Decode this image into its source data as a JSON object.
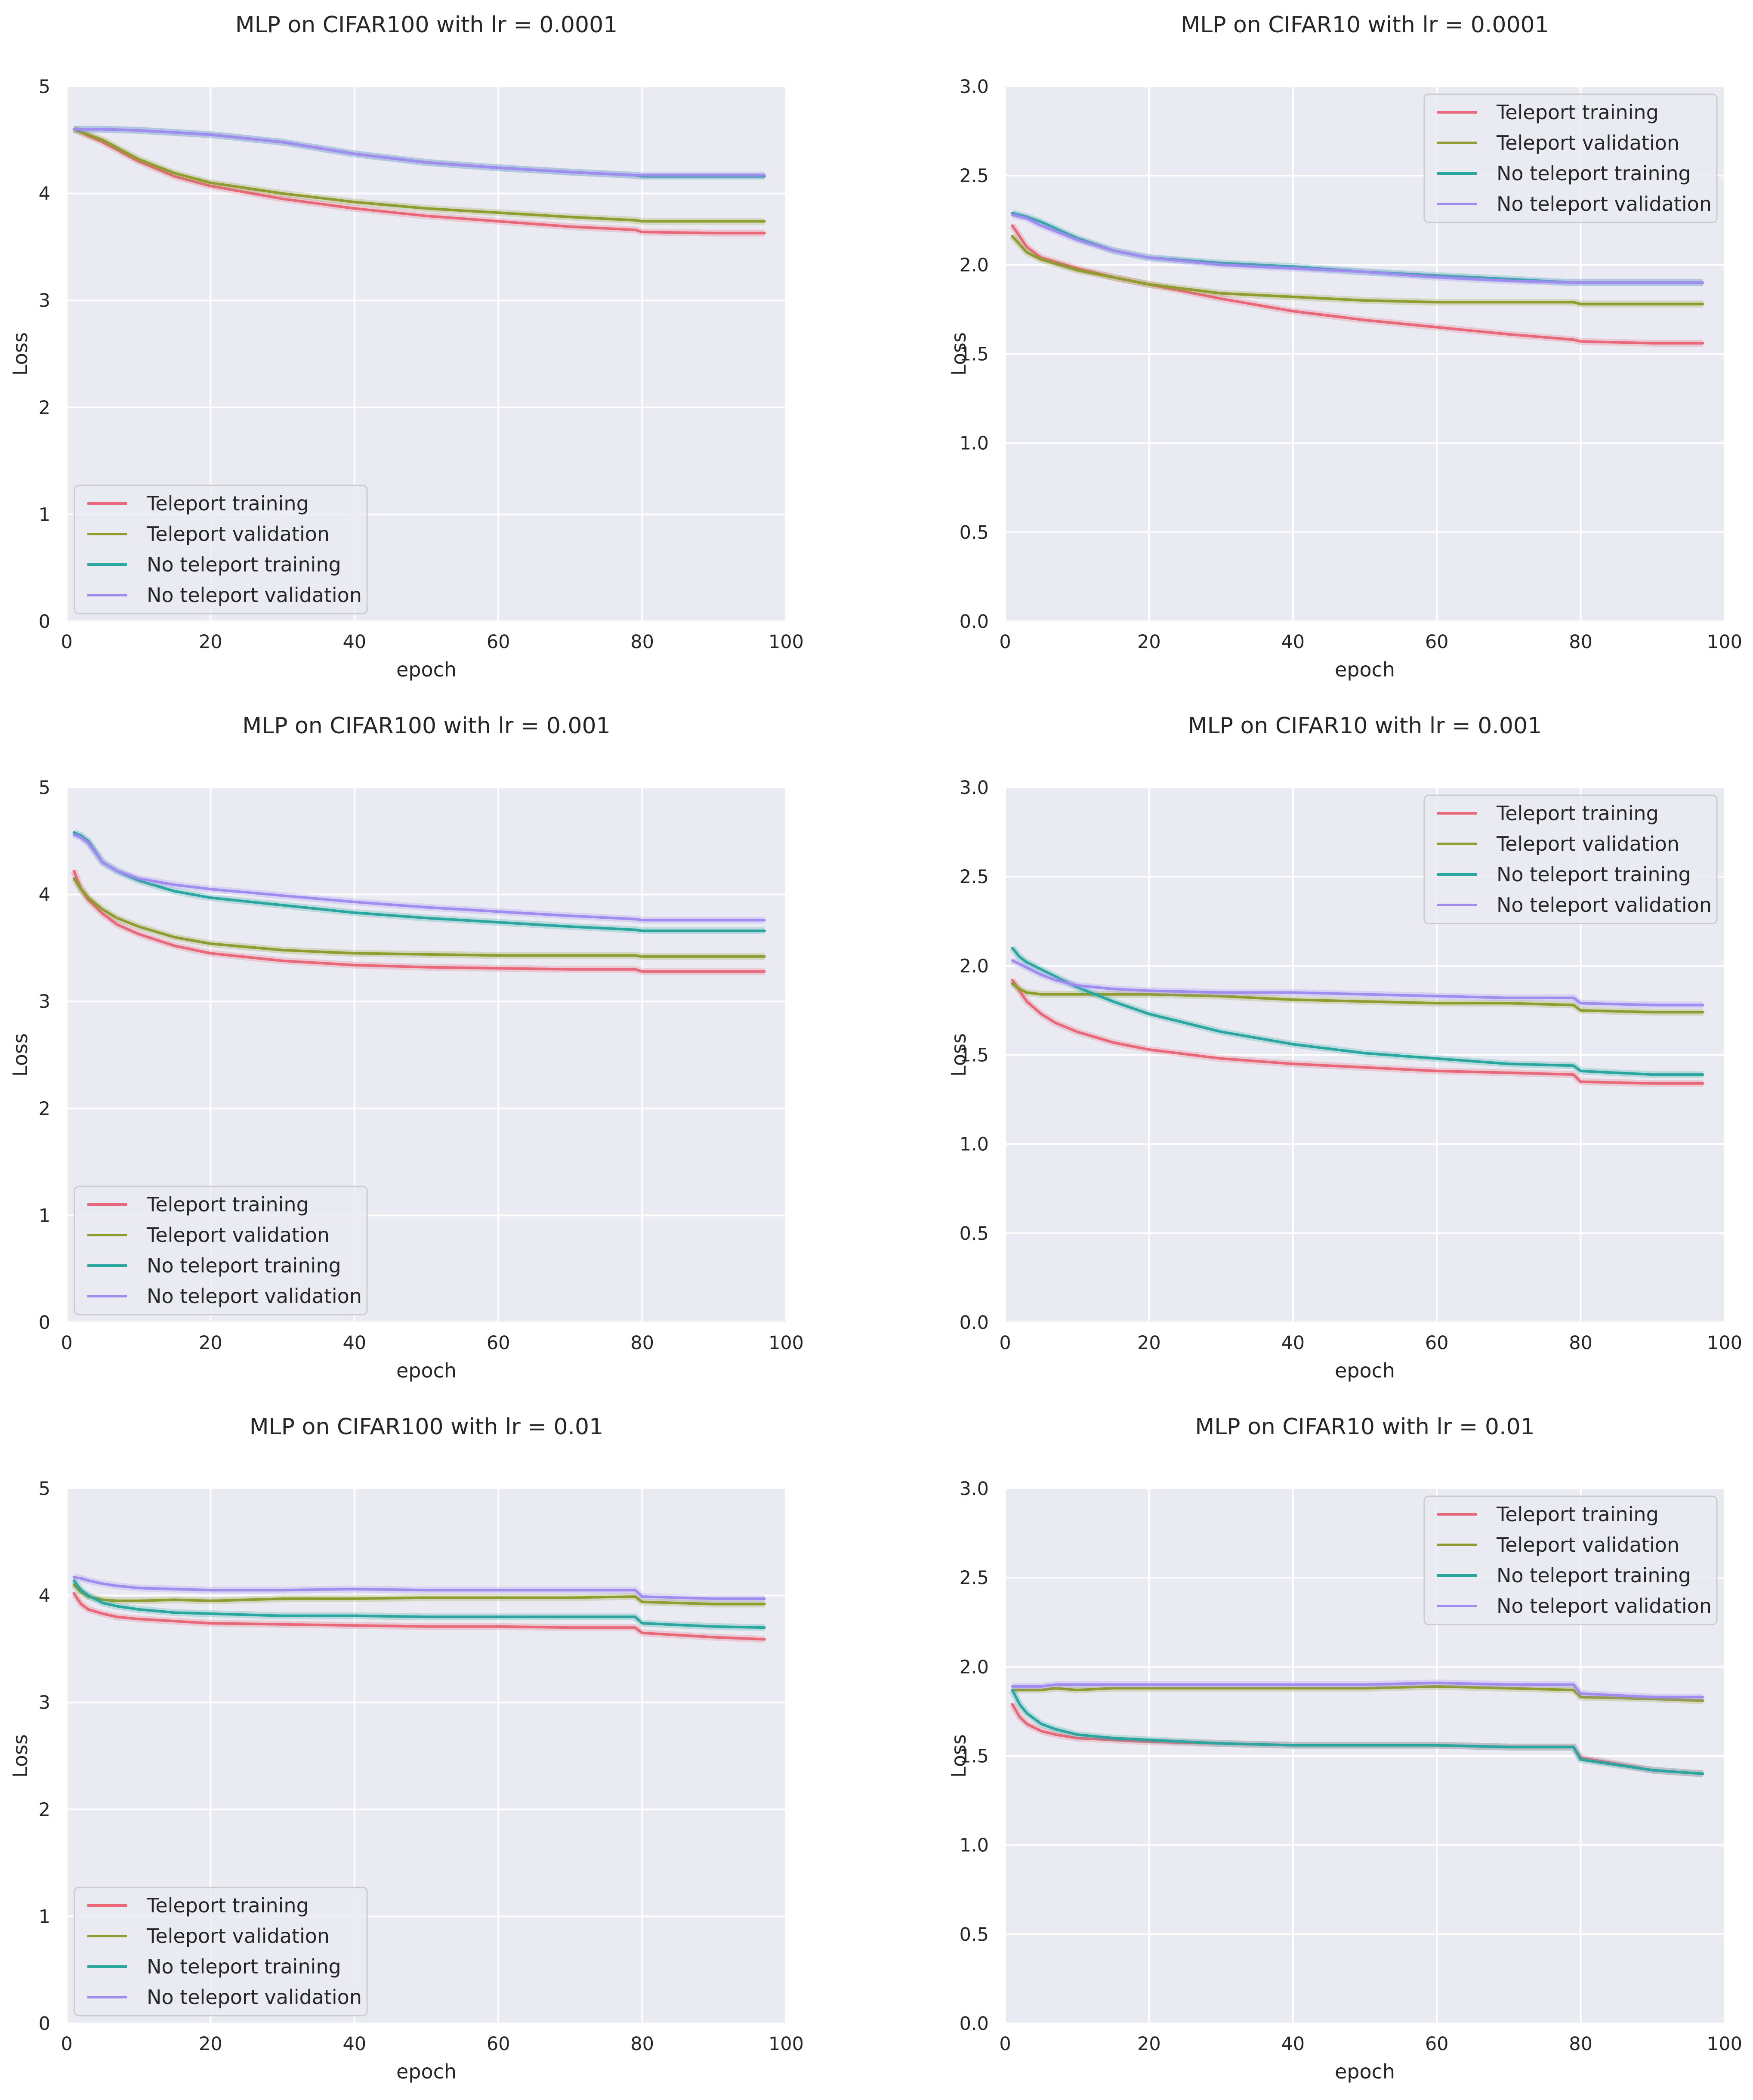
{
  "figure": {
    "ylabel_text": "Loss",
    "xlabel_text": "epoch"
  },
  "legend_labels": [
    "Teleport training",
    "Teleport validation",
    "No teleport training",
    "No teleport validation"
  ],
  "series_colors": [
    "#e8687a",
    "#8e9d2e",
    "#2aa6a0",
    "#a08cf0"
  ],
  "chart_data": [
    {
      "type": "line",
      "title": "MLP on CIFAR100 with lr = 0.0001",
      "xlabel": "epoch",
      "ylabel": "Loss",
      "xlim": [
        0,
        100
      ],
      "ylim": [
        0,
        5
      ],
      "xticks": [
        "0",
        "20",
        "40",
        "60",
        "80",
        "100"
      ],
      "yticks": [
        "0",
        "1",
        "2",
        "3",
        "4",
        "5"
      ],
      "grid": true,
      "legend_position": "lower-left",
      "x": [
        1,
        5,
        10,
        15,
        20,
        30,
        40,
        50,
        60,
        70,
        79,
        80,
        90,
        97
      ],
      "series": [
        {
          "name": "Teleport training",
          "values": [
            4.6,
            4.48,
            4.3,
            4.16,
            4.07,
            3.95,
            3.86,
            3.79,
            3.74,
            3.69,
            3.66,
            3.64,
            3.63,
            3.63
          ]
        },
        {
          "name": "Teleport validation",
          "values": [
            4.6,
            4.5,
            4.32,
            4.19,
            4.1,
            4.0,
            3.92,
            3.86,
            3.82,
            3.78,
            3.75,
            3.74,
            3.74,
            3.74
          ]
        },
        {
          "name": "No teleport training",
          "values": [
            4.6,
            4.6,
            4.59,
            4.57,
            4.55,
            4.48,
            4.37,
            4.29,
            4.24,
            4.2,
            4.17,
            4.16,
            4.16,
            4.16
          ]
        },
        {
          "name": "No teleport validation",
          "values": [
            4.6,
            4.6,
            4.59,
            4.57,
            4.55,
            4.48,
            4.37,
            4.29,
            4.24,
            4.2,
            4.17,
            4.17,
            4.17,
            4.17
          ]
        }
      ]
    },
    {
      "type": "line",
      "title": "MLP on CIFAR10 with lr = 0.0001",
      "xlabel": "epoch",
      "ylabel": "Loss",
      "xlim": [
        0,
        100
      ],
      "ylim": [
        0,
        3
      ],
      "xticks": [
        "0",
        "20",
        "40",
        "60",
        "80",
        "100"
      ],
      "yticks": [
        "0.0",
        "0.5",
        "1.0",
        "1.5",
        "2.0",
        "2.5",
        "3.0"
      ],
      "grid": true,
      "legend_position": "upper-right",
      "x": [
        1,
        3,
        5,
        10,
        15,
        20,
        30,
        40,
        50,
        60,
        70,
        79,
        80,
        90,
        97
      ],
      "series": [
        {
          "name": "Teleport training",
          "values": [
            2.22,
            2.1,
            2.04,
            1.98,
            1.93,
            1.89,
            1.81,
            1.74,
            1.69,
            1.65,
            1.61,
            1.58,
            1.57,
            1.56,
            1.56
          ]
        },
        {
          "name": "Teleport validation",
          "values": [
            2.16,
            2.07,
            2.03,
            1.97,
            1.93,
            1.89,
            1.84,
            1.82,
            1.8,
            1.79,
            1.79,
            1.79,
            1.78,
            1.78,
            1.78
          ]
        },
        {
          "name": "No teleport training",
          "values": [
            2.29,
            2.27,
            2.24,
            2.15,
            2.08,
            2.04,
            2.01,
            1.99,
            1.96,
            1.94,
            1.92,
            1.9,
            1.9,
            1.9,
            1.9
          ]
        },
        {
          "name": "No teleport validation",
          "values": [
            2.28,
            2.26,
            2.22,
            2.14,
            2.08,
            2.04,
            2.0,
            1.98,
            1.96,
            1.93,
            1.91,
            1.9,
            1.9,
            1.9,
            1.9
          ]
        }
      ]
    },
    {
      "type": "line",
      "title": "MLP on CIFAR100 with lr = 0.001",
      "xlabel": "epoch",
      "ylabel": "Loss",
      "xlim": [
        0,
        100
      ],
      "ylim": [
        0,
        5
      ],
      "xticks": [
        "0",
        "20",
        "40",
        "60",
        "80",
        "100"
      ],
      "yticks": [
        "0",
        "1",
        "2",
        "3",
        "4",
        "5"
      ],
      "grid": true,
      "legend_position": "lower-left",
      "x": [
        1,
        2,
        3,
        5,
        7,
        10,
        15,
        20,
        30,
        40,
        50,
        60,
        70,
        79,
        80,
        90,
        97
      ],
      "series": [
        {
          "name": "Teleport training",
          "values": [
            4.22,
            4.05,
            3.95,
            3.82,
            3.72,
            3.63,
            3.52,
            3.45,
            3.38,
            3.34,
            3.32,
            3.31,
            3.3,
            3.3,
            3.28,
            3.28,
            3.28
          ]
        },
        {
          "name": "Teleport validation",
          "values": [
            4.15,
            4.05,
            3.97,
            3.86,
            3.78,
            3.7,
            3.6,
            3.54,
            3.48,
            3.45,
            3.44,
            3.43,
            3.43,
            3.43,
            3.42,
            3.42,
            3.42
          ]
        },
        {
          "name": "No teleport training",
          "values": [
            4.58,
            4.55,
            4.5,
            4.3,
            4.22,
            4.13,
            4.03,
            3.97,
            3.9,
            3.83,
            3.78,
            3.74,
            3.7,
            3.67,
            3.66,
            3.66,
            3.66
          ]
        },
        {
          "name": "No teleport validation",
          "values": [
            4.56,
            4.53,
            4.48,
            4.3,
            4.22,
            4.15,
            4.09,
            4.05,
            3.99,
            3.93,
            3.88,
            3.84,
            3.8,
            3.77,
            3.76,
            3.76,
            3.76
          ]
        }
      ]
    },
    {
      "type": "line",
      "title": "MLP on CIFAR10 with lr = 0.001",
      "xlabel": "epoch",
      "ylabel": "Loss",
      "xlim": [
        0,
        100
      ],
      "ylim": [
        0,
        3
      ],
      "xticks": [
        "0",
        "20",
        "40",
        "60",
        "80",
        "100"
      ],
      "yticks": [
        "0.0",
        "0.5",
        "1.0",
        "1.5",
        "2.0",
        "2.5",
        "3.0"
      ],
      "grid": true,
      "legend_position": "upper-right",
      "x": [
        1,
        2,
        3,
        5,
        7,
        10,
        15,
        20,
        30,
        40,
        50,
        60,
        70,
        79,
        80,
        90,
        97
      ],
      "series": [
        {
          "name": "Teleport training",
          "values": [
            1.92,
            1.86,
            1.8,
            1.73,
            1.68,
            1.63,
            1.57,
            1.53,
            1.48,
            1.45,
            1.43,
            1.41,
            1.4,
            1.39,
            1.35,
            1.34,
            1.34
          ]
        },
        {
          "name": "Teleport validation",
          "values": [
            1.9,
            1.87,
            1.85,
            1.84,
            1.84,
            1.84,
            1.84,
            1.84,
            1.83,
            1.81,
            1.8,
            1.79,
            1.79,
            1.78,
            1.75,
            1.74,
            1.74
          ]
        },
        {
          "name": "No teleport training",
          "values": [
            2.1,
            2.05,
            2.02,
            1.98,
            1.94,
            1.88,
            1.8,
            1.73,
            1.63,
            1.56,
            1.51,
            1.48,
            1.45,
            1.44,
            1.41,
            1.39,
            1.39
          ]
        },
        {
          "name": "No teleport validation",
          "values": [
            2.03,
            2.01,
            1.99,
            1.95,
            1.92,
            1.89,
            1.87,
            1.86,
            1.85,
            1.85,
            1.84,
            1.83,
            1.82,
            1.82,
            1.79,
            1.78,
            1.78
          ]
        }
      ]
    },
    {
      "type": "line",
      "title": "MLP on CIFAR100 with lr = 0.01",
      "xlabel": "epoch",
      "ylabel": "Loss",
      "xlim": [
        0,
        100
      ],
      "ylim": [
        0,
        5
      ],
      "xticks": [
        "0",
        "20",
        "40",
        "60",
        "80",
        "100"
      ],
      "yticks": [
        "0",
        "1",
        "2",
        "3",
        "4",
        "5"
      ],
      "grid": true,
      "legend_position": "lower-left",
      "x": [
        1,
        2,
        3,
        5,
        7,
        10,
        15,
        20,
        30,
        40,
        50,
        60,
        70,
        79,
        80,
        90,
        97
      ],
      "series": [
        {
          "name": "Teleport training",
          "values": [
            4.02,
            3.92,
            3.87,
            3.83,
            3.8,
            3.78,
            3.76,
            3.74,
            3.73,
            3.72,
            3.71,
            3.71,
            3.7,
            3.7,
            3.65,
            3.61,
            3.59
          ]
        },
        {
          "name": "Teleport validation",
          "values": [
            4.1,
            4.03,
            3.99,
            3.96,
            3.95,
            3.95,
            3.96,
            3.95,
            3.97,
            3.97,
            3.98,
            3.98,
            3.98,
            3.99,
            3.94,
            3.92,
            3.92
          ]
        },
        {
          "name": "No teleport training",
          "values": [
            4.14,
            4.05,
            4.0,
            3.93,
            3.9,
            3.87,
            3.84,
            3.83,
            3.81,
            3.81,
            3.8,
            3.8,
            3.8,
            3.8,
            3.74,
            3.71,
            3.7
          ]
        },
        {
          "name": "No teleport validation",
          "values": [
            4.17,
            4.16,
            4.14,
            4.11,
            4.09,
            4.07,
            4.06,
            4.05,
            4.05,
            4.06,
            4.05,
            4.05,
            4.05,
            4.05,
            3.99,
            3.97,
            3.97
          ]
        }
      ]
    },
    {
      "type": "line",
      "title": "MLP on CIFAR10 with lr = 0.01",
      "xlabel": "epoch",
      "ylabel": "Loss",
      "xlim": [
        0,
        100
      ],
      "ylim": [
        0,
        3
      ],
      "xticks": [
        "0",
        "20",
        "40",
        "60",
        "80",
        "100"
      ],
      "yticks": [
        "0.0",
        "0.5",
        "1.0",
        "1.5",
        "2.0",
        "2.5",
        "3.0"
      ],
      "grid": true,
      "legend_position": "upper-right",
      "x": [
        1,
        2,
        3,
        5,
        7,
        10,
        15,
        20,
        30,
        40,
        50,
        60,
        70,
        79,
        80,
        90,
        97
      ],
      "series": [
        {
          "name": "Teleport training",
          "values": [
            1.79,
            1.72,
            1.68,
            1.64,
            1.62,
            1.6,
            1.59,
            1.58,
            1.57,
            1.56,
            1.56,
            1.56,
            1.55,
            1.55,
            1.49,
            1.42,
            1.4
          ]
        },
        {
          "name": "Teleport validation",
          "values": [
            1.87,
            1.87,
            1.87,
            1.87,
            1.88,
            1.87,
            1.88,
            1.88,
            1.88,
            1.88,
            1.88,
            1.89,
            1.88,
            1.87,
            1.83,
            1.82,
            1.81
          ]
        },
        {
          "name": "No teleport training",
          "values": [
            1.87,
            1.79,
            1.74,
            1.68,
            1.65,
            1.62,
            1.6,
            1.59,
            1.57,
            1.56,
            1.56,
            1.56,
            1.55,
            1.55,
            1.48,
            1.42,
            1.4
          ]
        },
        {
          "name": "No teleport validation",
          "values": [
            1.89,
            1.89,
            1.89,
            1.89,
            1.9,
            1.9,
            1.9,
            1.9,
            1.9,
            1.9,
            1.9,
            1.91,
            1.9,
            1.9,
            1.85,
            1.83,
            1.83
          ]
        }
      ]
    }
  ]
}
